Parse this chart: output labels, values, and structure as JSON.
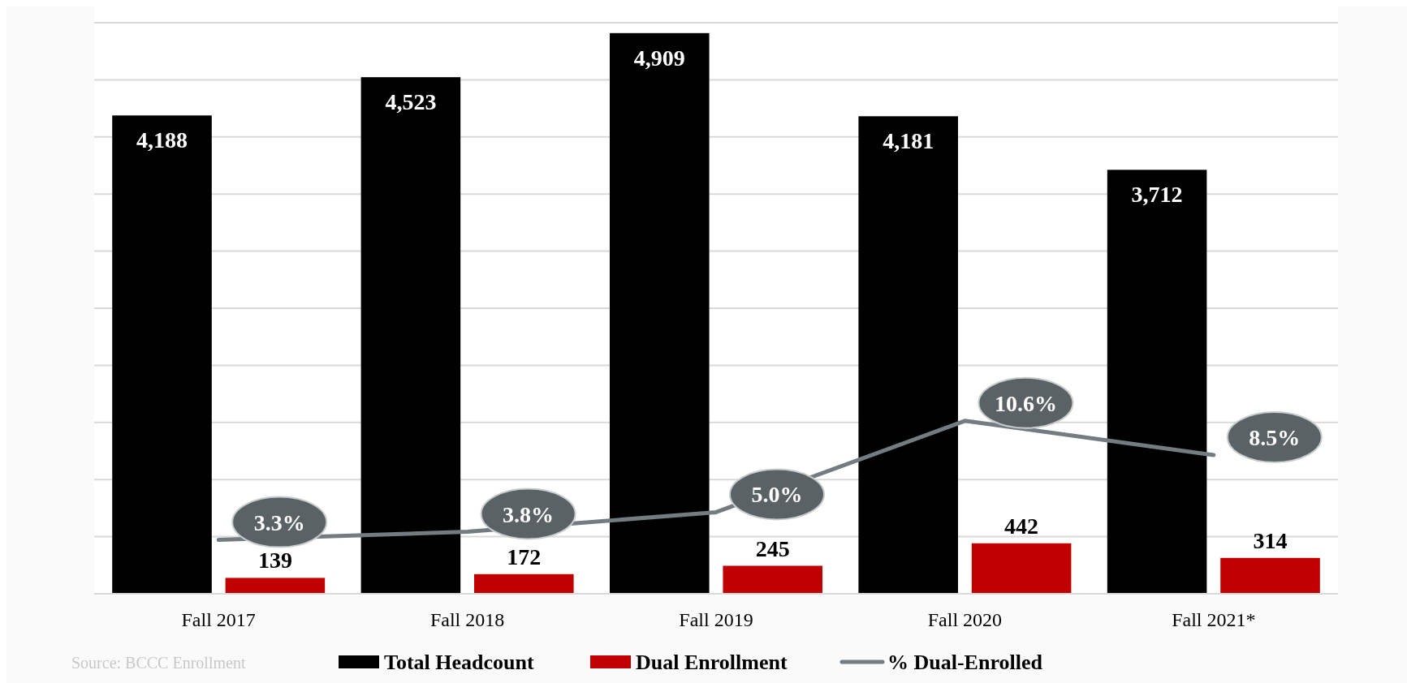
{
  "chart_data": {
    "type": "bar",
    "categories": [
      "Fall 2017",
      "Fall 2018",
      "Fall 2019",
      "Fall 2020",
      "Fall 2021*"
    ],
    "series": [
      {
        "name": "Total Headcount",
        "color": "#000000",
        "values": [
          4188,
          4523,
          4909,
          4181,
          3712
        ],
        "value_labels": [
          "4,188",
          "4,523",
          "4,909",
          "4,181",
          "3,712"
        ]
      },
      {
        "name": "Dual Enrollment",
        "color": "#c00000",
        "values": [
          139,
          172,
          245,
          442,
          314
        ]
      },
      {
        "name": "% Dual-Enrolled",
        "type": "line",
        "axis": "y2",
        "color": "#737c80",
        "values": [
          3.3,
          3.8,
          5.0,
          10.6,
          8.5
        ],
        "value_labels": [
          "3.3%",
          "3.8%",
          "5.0%",
          "10.6%",
          "8.5%"
        ]
      }
    ],
    "ylim": [
      0,
      5000
    ],
    "yticks": [
      {
        "value": 0,
        "label": null
      },
      {
        "value": 500,
        "label": null
      },
      {
        "value": 1000,
        "label": null
      },
      {
        "value": 1500,
        "label": null
      },
      {
        "value": 2000,
        "label": null
      },
      {
        "value": 2500,
        "label": null
      },
      {
        "value": 3000,
        "label": null
      },
      {
        "value": 3500,
        "label": null
      },
      {
        "value": 4000,
        "label": null
      },
      {
        "value": 4500,
        "label": null
      },
      {
        "value": 5000,
        "label": null
      }
    ],
    "y2lim": [
      0,
      35
    ],
    "grid": "y",
    "tick_labels": "x",
    "data_labels": true,
    "legend": "bottom",
    "annotations": [
      "Source: BCCC Enrollment"
    ]
  }
}
